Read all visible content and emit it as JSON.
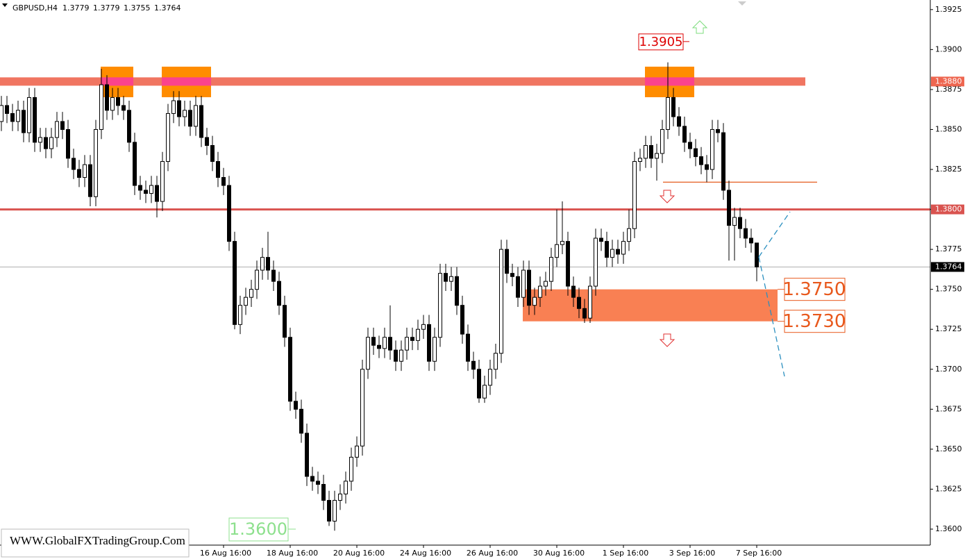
{
  "chart_data": {
    "type": "candlestick",
    "symbol": "GBPUSD,H4",
    "ohlc_header": [
      1.3779,
      1.3779,
      1.3755,
      1.3764
    ],
    "watermark": "WWW.GlobalFXTradingGroup.Com",
    "ylim": [
      1.359,
      1.3931
    ],
    "yticks": [
      1.3925,
      {
        "value": 1.39,
        "label": "1.3900"
      },
      1.3875,
      {
        "value": 1.385,
        "label": "1.3850"
      },
      1.3825,
      {
        "value": 1.38,
        "label": "1.3800"
      },
      1.3775,
      {
        "value": 1.375,
        "label": "1.3750"
      },
      1.3725,
      {
        "value": 1.37,
        "label": "1.3700"
      },
      1.3675,
      {
        "value": 1.365,
        "label": "1.3650"
      },
      1.3625,
      {
        "value": 1.36,
        "label": "1.3600"
      }
    ],
    "categories": [
      null,
      null,
      null,
      null,
      null,
      null,
      null,
      null,
      null,
      null,
      null,
      null,
      null,
      null,
      null,
      null,
      null,
      null,
      null,
      null,
      null,
      null,
      null,
      null,
      null,
      null,
      null,
      null,
      null,
      null,
      null,
      null,
      null,
      null,
      null,
      null,
      null,
      null,
      null,
      null,
      "16 Aug 16:00",
      null,
      null,
      null,
      null,
      null,
      null,
      null,
      null,
      null,
      null,
      null,
      "18 Aug 16:00",
      null,
      null,
      null,
      null,
      null,
      null,
      null,
      null,
      null,
      null,
      null,
      "20 Aug 16:00",
      null,
      null,
      null,
      null,
      null,
      null,
      null,
      null,
      null,
      null,
      null,
      "24 Aug 16:00",
      null,
      null,
      null,
      null,
      null,
      null,
      null,
      null,
      null,
      null,
      null,
      "26 Aug 16:00",
      null,
      null,
      null,
      null,
      null,
      null,
      null,
      null,
      null,
      null,
      null,
      "30 Aug 16:00",
      null,
      null,
      null,
      null,
      null,
      null,
      null,
      null,
      null,
      null,
      null,
      "1 Sep 16:00",
      null,
      null,
      null,
      null,
      null,
      null,
      null,
      null,
      null,
      null,
      null,
      "3 Sep 16:00",
      null,
      null,
      null,
      null,
      null,
      null,
      null,
      null,
      null,
      null,
      null,
      "7 Sep 16:00"
    ],
    "open": [
      1.3855,
      1.3865,
      1.386,
      1.3855,
      1.3862,
      1.3848,
      1.387,
      1.3842,
      1.3845,
      1.3838,
      1.3845,
      1.3855,
      1.385,
      1.3832,
      1.3825,
      1.382,
      1.3828,
      1.3808,
      1.385,
      1.3878,
      1.3862,
      1.387,
      1.3865,
      1.3862,
      1.3842,
      1.3815,
      1.3812,
      1.381,
      1.3815,
      1.3805,
      1.383,
      1.386,
      1.3868,
      1.3858,
      1.3862,
      1.3852,
      1.3865,
      1.3845,
      1.384,
      1.383,
      1.382,
      1.3815,
      1.378,
      1.3728,
      1.374,
      1.3745,
      1.375,
      1.3762,
      1.377,
      1.3762,
      1.3755,
      1.374,
      1.372,
      1.368,
      1.3675,
      1.366,
      1.3633,
      1.363,
      1.3628,
      1.3618,
      1.3605,
      1.3618,
      1.3622,
      1.363,
      1.3645,
      1.3652,
      1.37,
      1.372,
      1.3715,
      1.3713,
      1.372,
      1.3712,
      1.3705,
      1.3712,
      1.372,
      1.3718,
      1.3725,
      1.3728,
      1.3705,
      1.372,
      1.376,
      1.3755,
      1.3758,
      1.374,
      1.3722,
      1.3705,
      1.37,
      1.3682,
      1.369,
      1.37,
      1.371,
      1.3775,
      1.376,
      1.3758,
      1.3745,
      1.3762,
      1.374,
      1.3745,
      1.3752,
      1.3755,
      1.377,
      1.3778,
      1.378,
      1.3752,
      1.3745,
      1.3738,
      1.3732,
      1.3752,
      1.3782,
      1.378,
      1.377,
      1.3775,
      1.3772,
      1.378,
      1.3788,
      1.383,
      1.3832,
      1.384,
      1.3832,
      1.3835,
      1.385,
      1.387,
      1.3858,
      1.3852,
      1.3842,
      1.3838,
      1.3833,
      1.3828,
      1.3825,
      1.385,
      1.3848,
      1.3812,
      1.379,
      1.3795,
      1.3788,
      1.3782,
      1.3779
    ],
    "high": [
      1.3871,
      1.3871,
      1.3866,
      1.3868,
      1.3868,
      1.3876,
      1.3876,
      1.3851,
      1.3851,
      1.3851,
      1.3861,
      1.3861,
      1.3856,
      1.3838,
      1.3831,
      1.3834,
      1.3834,
      1.3856,
      1.3888,
      1.3884,
      1.3876,
      1.3876,
      1.3871,
      1.3868,
      1.3848,
      1.3821,
      1.3818,
      1.3821,
      1.3821,
      1.3836,
      1.3866,
      1.3874,
      1.3874,
      1.3868,
      1.3868,
      1.3871,
      1.3871,
      1.3851,
      1.3846,
      1.3836,
      1.3826,
      1.3821,
      1.3786,
      1.3746,
      1.3751,
      1.3756,
      1.3768,
      1.3776,
      1.3786,
      1.3768,
      1.3761,
      1.3746,
      1.3726,
      1.3686,
      1.3681,
      1.3666,
      1.3639,
      1.3636,
      1.3634,
      1.3624,
      1.3624,
      1.3628,
      1.3636,
      1.3651,
      1.3658,
      1.3706,
      1.3726,
      1.3726,
      1.3721,
      1.3726,
      1.374,
      1.3718,
      1.3718,
      1.3726,
      1.3726,
      1.3731,
      1.3734,
      1.3734,
      1.3726,
      1.3766,
      1.3766,
      1.3764,
      1.3764,
      1.3746,
      1.3728,
      1.3711,
      1.3706,
      1.3696,
      1.3706,
      1.3716,
      1.3781,
      1.3781,
      1.3766,
      1.3764,
      1.3768,
      1.3768,
      1.3751,
      1.3758,
      1.3761,
      1.3776,
      1.38,
      1.3805,
      1.3786,
      1.3758,
      1.3751,
      1.3744,
      1.3758,
      1.3788,
      1.3788,
      1.3786,
      1.3781,
      1.3781,
      1.3786,
      1.38,
      1.3836,
      1.3838,
      1.3846,
      1.3846,
      1.3841,
      1.3856,
      1.3892,
      1.3876,
      1.3864,
      1.3858,
      1.3848,
      1.3844,
      1.3839,
      1.3834,
      1.3856,
      1.3856,
      1.3854,
      1.3818,
      1.3801,
      1.3801,
      1.3794,
      1.3788,
      1.3779
    ],
    "low": [
      1.3849,
      1.3854,
      1.3849,
      1.3849,
      1.3842,
      1.3842,
      1.3836,
      1.3836,
      1.3832,
      1.3832,
      1.3839,
      1.3844,
      1.3826,
      1.3819,
      1.3814,
      1.3814,
      1.3802,
      1.3802,
      1.3844,
      1.3856,
      1.3856,
      1.3859,
      1.3856,
      1.3836,
      1.3809,
      1.3806,
      1.3804,
      1.3804,
      1.3795,
      1.3799,
      1.3824,
      1.3854,
      1.3852,
      1.3852,
      1.3846,
      1.3846,
      1.3839,
      1.3834,
      1.3824,
      1.3814,
      1.3809,
      1.3774,
      1.3725,
      1.3722,
      1.3734,
      1.3739,
      1.3744,
      1.3756,
      1.3756,
      1.3749,
      1.3734,
      1.3714,
      1.3674,
      1.3669,
      1.3654,
      1.3627,
      1.3624,
      1.3622,
      1.3612,
      1.3602,
      1.3599,
      1.3612,
      1.3616,
      1.3624,
      1.3639,
      1.3646,
      1.3694,
      1.3709,
      1.3707,
      1.3707,
      1.3706,
      1.3699,
      1.3699,
      1.3706,
      1.3712,
      1.3712,
      1.3719,
      1.3699,
      1.3699,
      1.3714,
      1.3749,
      1.3749,
      1.3734,
      1.3716,
      1.3699,
      1.3694,
      1.3679,
      1.3679,
      1.3684,
      1.3694,
      1.3704,
      1.3754,
      1.3752,
      1.3739,
      1.3739,
      1.3734,
      1.3734,
      1.3739,
      1.3746,
      1.3749,
      1.3764,
      1.3772,
      1.3746,
      1.3739,
      1.3732,
      1.3729,
      1.3729,
      1.3746,
      1.3774,
      1.3764,
      1.3764,
      1.3766,
      1.3766,
      1.3774,
      1.3782,
      1.3824,
      1.3826,
      1.3826,
      1.3818,
      1.3829,
      1.3844,
      1.3852,
      1.3846,
      1.3836,
      1.3832,
      1.3827,
      1.3822,
      1.3817,
      1.3819,
      1.3842,
      1.3806,
      1.3768,
      1.3768,
      1.3782,
      1.3776,
      1.3773,
      1.3755
    ],
    "close": [
      1.3865,
      1.386,
      1.3855,
      1.3862,
      1.3848,
      1.387,
      1.3842,
      1.3845,
      1.3838,
      1.3845,
      1.3855,
      1.385,
      1.3832,
      1.3825,
      1.382,
      1.3828,
      1.3808,
      1.385,
      1.3878,
      1.3862,
      1.387,
      1.3865,
      1.3862,
      1.3842,
      1.3815,
      1.3812,
      1.381,
      1.3815,
      1.3805,
      1.383,
      1.386,
      1.3868,
      1.3858,
      1.3862,
      1.3852,
      1.3865,
      1.3845,
      1.384,
      1.383,
      1.382,
      1.3815,
      1.378,
      1.3728,
      1.374,
      1.3745,
      1.375,
      1.3762,
      1.377,
      1.3762,
      1.3755,
      1.374,
      1.372,
      1.368,
      1.3675,
      1.366,
      1.3633,
      1.363,
      1.3628,
      1.3618,
      1.3605,
      1.3618,
      1.3622,
      1.363,
      1.3645,
      1.3652,
      1.37,
      1.372,
      1.3715,
      1.3713,
      1.372,
      1.3712,
      1.3705,
      1.3712,
      1.372,
      1.3718,
      1.3725,
      1.3728,
      1.3705,
      1.372,
      1.376,
      1.3755,
      1.3758,
      1.374,
      1.3722,
      1.3705,
      1.37,
      1.3682,
      1.369,
      1.37,
      1.371,
      1.3775,
      1.376,
      1.3758,
      1.3745,
      1.3762,
      1.374,
      1.3745,
      1.3752,
      1.3755,
      1.377,
      1.3778,
      1.378,
      1.3752,
      1.3745,
      1.3738,
      1.3732,
      1.3752,
      1.3782,
      1.378,
      1.377,
      1.3775,
      1.3772,
      1.378,
      1.3788,
      1.383,
      1.3832,
      1.384,
      1.3832,
      1.3835,
      1.385,
      1.387,
      1.3858,
      1.3852,
      1.3842,
      1.3838,
      1.3833,
      1.3828,
      1.3825,
      1.385,
      1.3848,
      1.3812,
      1.379,
      1.3795,
      1.3788,
      1.3782,
      1.3779,
      1.3764
    ],
    "resistance": {
      "value": 1.388,
      "label": "1.3880",
      "color": "#ee6650"
    },
    "support": {
      "value": 1.38,
      "label": "1.3800",
      "color": "#d9534f"
    },
    "current_price": {
      "value": 1.3764,
      "label": "1.3764"
    },
    "swing_low_line": {
      "value": 1.3817,
      "color": "#e8703a"
    },
    "high_marker": {
      "value": 1.3905
    },
    "low_marker": {
      "value": 1.36,
      "label": "1.3600"
    },
    "zone": {
      "color": "#f98053",
      "top": {
        "value": 1.375,
        "label": "1.3750"
      },
      "bottom": {
        "value": 1.373,
        "label": "1.3730"
      }
    }
  }
}
